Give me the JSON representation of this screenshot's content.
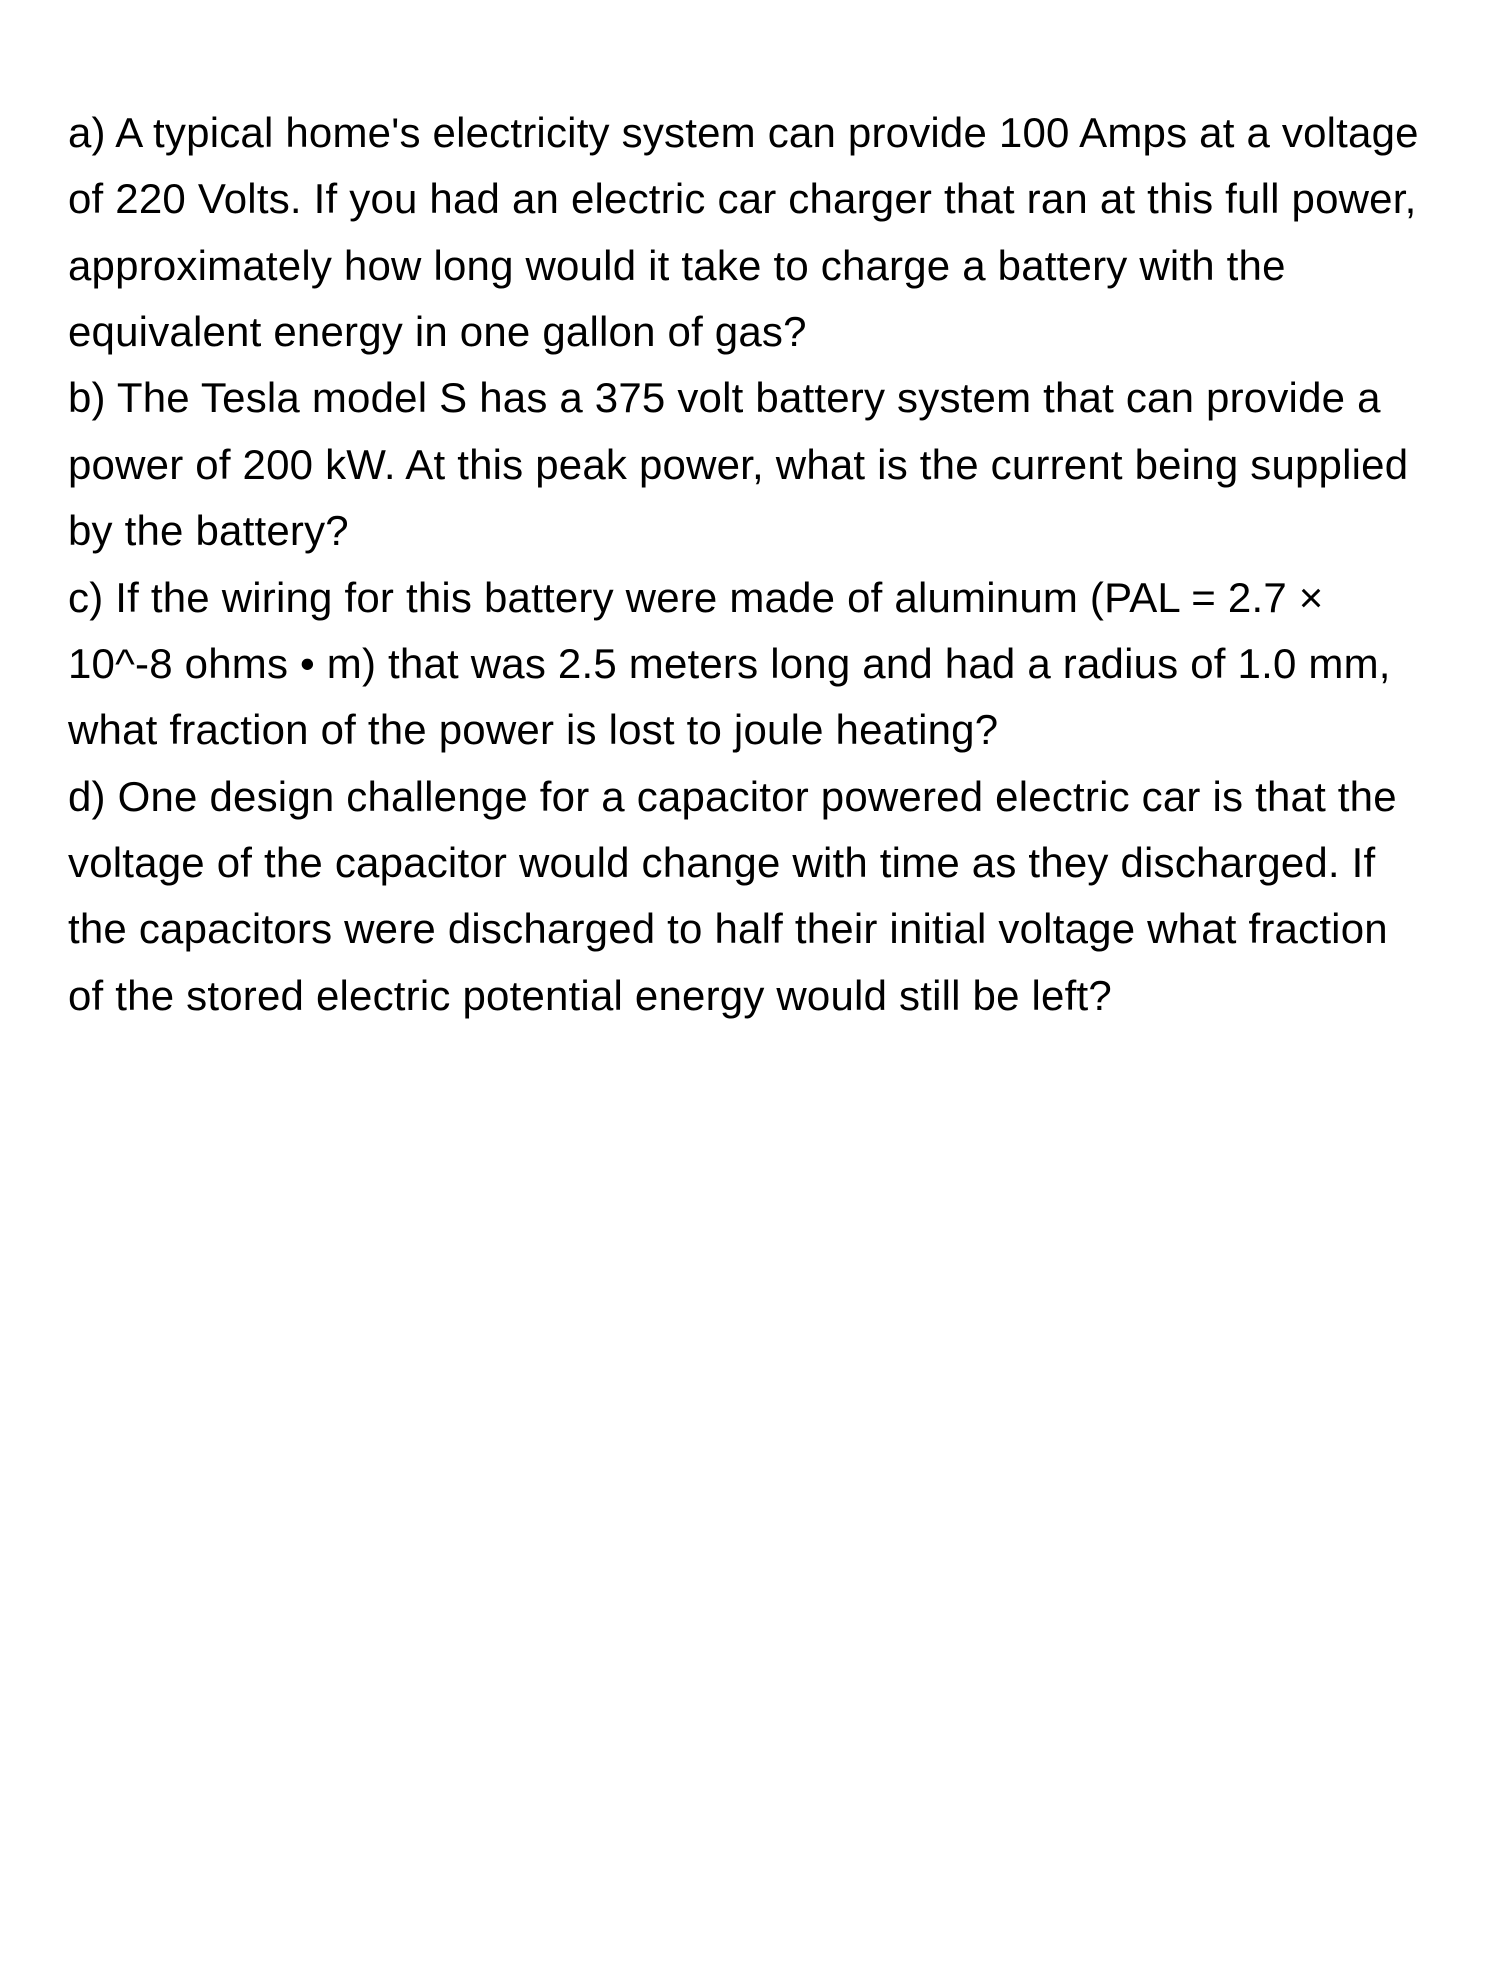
{
  "document": {
    "background_color": "#ffffff",
    "text_color": "#000000",
    "font_size": 42,
    "line_height": 1.58,
    "font_weight": 400,
    "questions": {
      "a": "a) A typical home's electricity system can provide 100 Amps at a voltage of 220 Volts. If you had an electric car charger that ran at this full power, approximately how long would it take to charge a battery with the equivalent energy in one gallon of gas?",
      "b": "b) The Tesla model S has a 375 volt battery system that can provide a power of 200 kW. At this peak power, what is the current being supplied by the battery?",
      "c": "c) If the wiring for this battery were made of aluminum (PAL = 2.7 × 10^-8 ohms • m) that was 2.5 meters long and had a radius of 1.0 mm, what fraction of the power is lost to joule heating?",
      "d": "d) One design challenge for a capacitor powered electric car is that the voltage of the capacitor would change with time as they discharged. If the capacitors were discharged to half their initial voltage what fraction of the stored electric potential energy would still be left?"
    }
  }
}
